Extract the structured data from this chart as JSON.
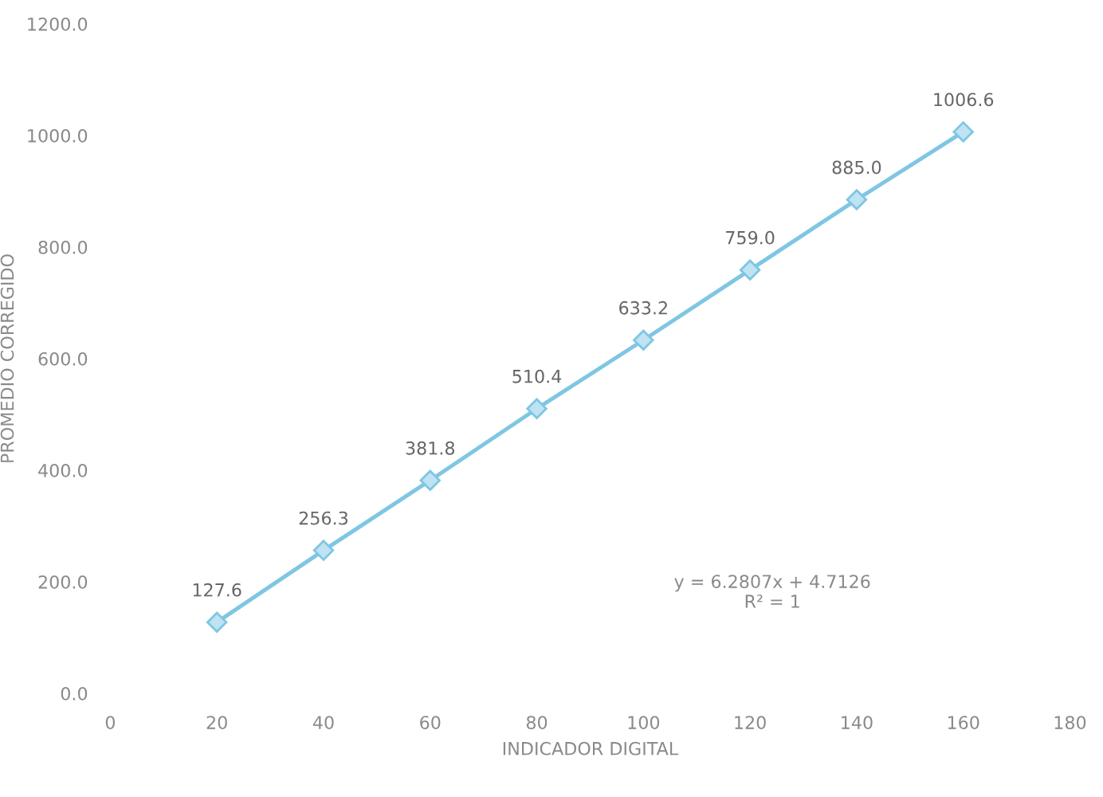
{
  "chart_data": {
    "type": "line",
    "xlabel": "INDICADOR DIGITAL",
    "ylabel": "PROMEDIO CORREGIDO",
    "x": [
      20,
      40,
      60,
      80,
      100,
      120,
      140,
      160
    ],
    "series": [
      {
        "color": "#7fc6e3",
        "values": [
          127.6,
          256.3,
          381.8,
          510.4,
          633.2,
          759.0,
          885.0,
          1006.6
        ],
        "value_labels": [
          "127.6",
          "256.3",
          "381.8",
          "510.4",
          "633.2",
          "759.0",
          "885.0",
          "1006.6"
        ]
      }
    ],
    "xlim": [
      0,
      180
    ],
    "xticks": [
      0,
      20,
      40,
      60,
      80,
      100,
      120,
      140,
      160,
      180
    ],
    "ylim": [
      0,
      1200
    ],
    "yticks": [
      {
        "value": 0,
        "label": "0.0"
      },
      {
        "value": 200,
        "label": "200.0"
      },
      {
        "value": 400,
        "label": "400.0"
      },
      {
        "value": 600,
        "label": "600.0"
      },
      {
        "value": 800,
        "label": "800.0"
      },
      {
        "value": 1000,
        "label": "1000.0"
      },
      {
        "value": 1200,
        "label": "1200.0"
      }
    ],
    "annotations": [
      "y = 6.2807x + 4.7126\nR² = 1"
    ],
    "marker": "diamond",
    "line_style": "solid",
    "grid": false,
    "legend": false
  }
}
